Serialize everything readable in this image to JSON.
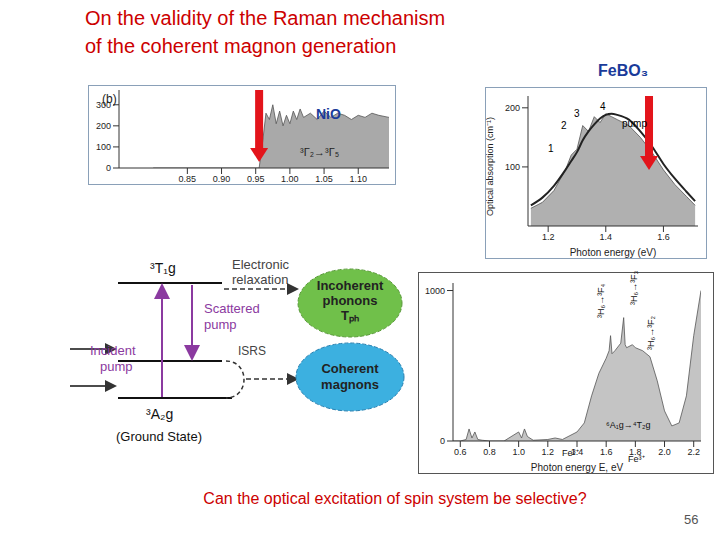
{
  "title": [
    "On the validity of the Raman mechanism",
    "of the coherent magnon generation"
  ],
  "question": "Can the optical excitation of spin system be selective?",
  "page": "56",
  "chart_data": [
    {
      "type": "area",
      "title": "NiO",
      "annotations": [
        "(b)",
        "³Γ₂→³Γ₅"
      ],
      "x": [
        0.8,
        0.9,
        0.95,
        0.955,
        0.96,
        0.965,
        0.97,
        0.975,
        0.98,
        0.985,
        0.99,
        0.995,
        1.0,
        1.005,
        1.01,
        1.015,
        1.02,
        1.03,
        1.04,
        1.05,
        1.06,
        1.07,
        1.08,
        1.09,
        1.1,
        1.11,
        1.12,
        1.13,
        1.145
      ],
      "series": [
        {
          "type": "area",
          "color": "#a9a9a9",
          "values": [
            0,
            0,
            0,
            0,
            120,
            260,
            230,
            300,
            210,
            270,
            200,
            250,
            210,
            270,
            230,
            280,
            240,
            260,
            230,
            270,
            240,
            260,
            250,
            230,
            250,
            240,
            260,
            250,
            240
          ]
        }
      ],
      "xlim": [
        0.75,
        1.145
      ],
      "xticks": [
        0.85,
        {
          "value": 0.9,
          "label": "0.90"
        },
        0.95,
        {
          "value": 1,
          "label": "1.00"
        },
        1.05,
        {
          "value": 1.1,
          "label": "1.10"
        }
      ],
      "ylim": [
        0,
        370
      ],
      "yticks": [
        0,
        100,
        200,
        300
      ],
      "pump_energy": 0.955
    },
    {
      "type": "area",
      "title": "FeBO₃",
      "annotations": [
        "1",
        "2",
        "3",
        "4",
        "pump"
      ],
      "x_label": "Photon energy (eV)",
      "y_label": "Optical absorption (cm⁻¹)",
      "x": [
        1.14,
        1.18,
        1.22,
        1.26,
        1.28,
        1.3,
        1.32,
        1.34,
        1.36,
        1.38,
        1.4,
        1.42,
        1.44,
        1.48,
        1.52,
        1.56,
        1.6,
        1.64,
        1.68,
        1.71
      ],
      "series": [
        {
          "type": "area",
          "color": "#b0b0b0",
          "values": [
            30,
            40,
            60,
            95,
            120,
            130,
            170,
            160,
            185,
            175,
            190,
            185,
            180,
            170,
            150,
            125,
            95,
            70,
            50,
            35
          ]
        },
        {
          "type": "line",
          "color": "#222222",
          "values": [
            35,
            48,
            68,
            95,
            110,
            125,
            145,
            160,
            172,
            182,
            188,
            190,
            188,
            180,
            160,
            135,
            105,
            80,
            58,
            42
          ]
        }
      ],
      "xlim": [
        1.13,
        1.72
      ],
      "xticks": [
        1.2,
        1.4,
        1.6
      ],
      "ylim": [
        0,
        220
      ],
      "yticks": [
        100,
        200
      ],
      "pump_energy": 1.55
    },
    {
      "type": "area",
      "annotations": [
        "³H₆→³F₄",
        "³H₆→³F₃",
        "³H₆→³F₂",
        "⁶A₁g→⁴T₂g",
        "Fe³⁺",
        "Fe³⁺"
      ],
      "x_label": "Photon energy E, eV",
      "x": [
        0.55,
        0.6,
        0.64,
        0.66,
        0.68,
        0.7,
        0.72,
        0.75,
        0.8,
        0.9,
        1.0,
        1.02,
        1.04,
        1.06,
        1.1,
        1.2,
        1.25,
        1.3,
        1.4,
        1.45,
        1.5,
        1.55,
        1.6,
        1.62,
        1.63,
        1.64,
        1.66,
        1.7,
        1.72,
        1.73,
        1.74,
        1.78,
        1.8,
        1.85,
        1.9,
        1.95,
        2.0,
        2.05,
        2.1,
        2.15,
        2.2,
        2.25
      ],
      "series": [
        {
          "type": "area",
          "color": "#c4c4c4",
          "values": [
            0,
            0,
            10,
            80,
            20,
            60,
            10,
            5,
            0,
            0,
            60,
            20,
            80,
            30,
            5,
            10,
            20,
            10,
            60,
            120,
            300,
            450,
            550,
            600,
            700,
            580,
            600,
            650,
            820,
            640,
            620,
            640,
            620,
            600,
            560,
            400,
            200,
            100,
            120,
            300,
            700,
            1000
          ]
        }
      ],
      "xlim": [
        0.55,
        2.25
      ],
      "xticks": [
        0.6,
        0.8,
        {
          "value": 1,
          "label": "1.0"
        },
        1.2,
        1.4,
        1.6,
        1.8,
        {
          "value": 2,
          "label": "2.0"
        },
        2.2
      ],
      "ylim": [
        0,
        1050
      ],
      "yticks": [
        0,
        1000
      ]
    }
  ],
  "diagram": {
    "upper_level": "³T₁g",
    "ground_level": "³A₂g",
    "ground_note": "(Ground State)",
    "incident": [
      "Incident",
      "pump"
    ],
    "scattered": [
      "Scattered",
      "pump"
    ],
    "relaxation": [
      "Electronic",
      "relaxation"
    ],
    "isrs": "ISRS",
    "incoherent": [
      "Incoherent",
      "phonons",
      "Tₚₕ"
    ],
    "coherent": [
      "Coherent",
      "magnons"
    ]
  }
}
